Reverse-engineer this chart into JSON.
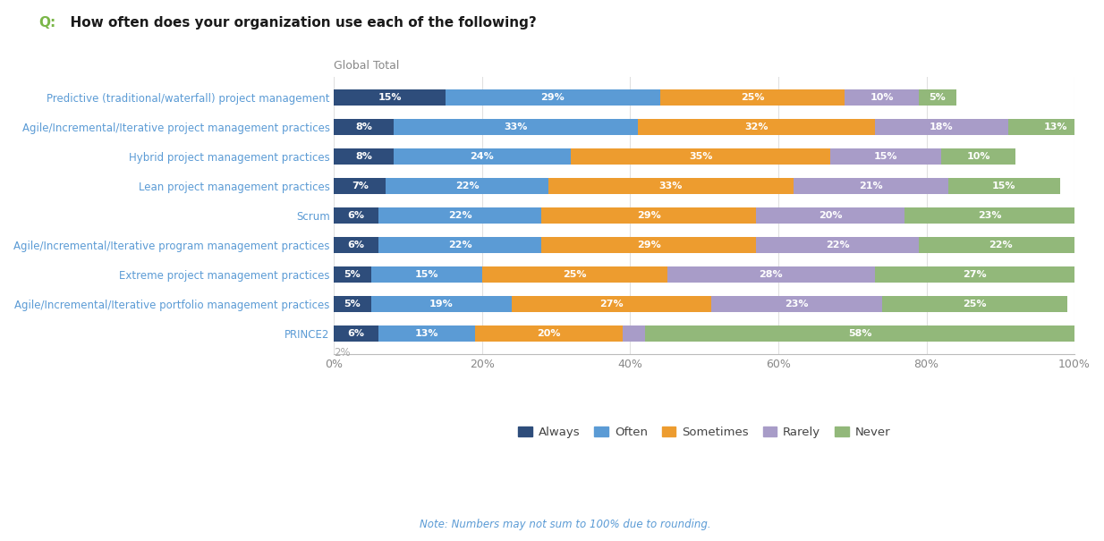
{
  "title_q": "Q:",
  "title_text": "  How often does your organization use each of the following?",
  "subtitle": "Global Total",
  "note": "Note: Numbers may not sum to 100% due to rounding.",
  "categories": [
    "Predictive (traditional/waterfall) project management",
    "Agile/Incremental/Iterative project management practices",
    "Hybrid project management practices",
    "Lean project management practices",
    "Scrum",
    "Agile/Incremental/Iterative program management practices",
    "Extreme project management practices",
    "Agile/Incremental/Iterative portfolio management practices",
    "PRINCE2"
  ],
  "series": {
    "Always": [
      15,
      8,
      8,
      7,
      6,
      6,
      5,
      5,
      6
    ],
    "Often": [
      29,
      33,
      24,
      22,
      22,
      22,
      15,
      19,
      13
    ],
    "Sometimes": [
      25,
      32,
      35,
      33,
      29,
      29,
      25,
      27,
      20
    ],
    "Rarely": [
      10,
      18,
      15,
      21,
      20,
      22,
      28,
      23,
      3
    ],
    "Never": [
      5,
      13,
      10,
      15,
      23,
      22,
      27,
      25,
      58
    ]
  },
  "prince2_2pct_label": "2%",
  "colors": {
    "Always": "#2e4d7b",
    "Often": "#5b9bd5",
    "Sometimes": "#ed9c2f",
    "Rarely": "#a89cc8",
    "Never": "#92b87a"
  },
  "bar_height": 0.55,
  "background_color": "#ffffff",
  "title_q_color": "#7ab648",
  "title_text_color": "#1a1a1a",
  "label_color": "#5b9bd5",
  "note_color": "#5b9bd5",
  "text_color_on_bar": "#ffffff",
  "xlim": [
    0,
    100
  ],
  "figsize": [
    12.34,
    6.05
  ],
  "dpi": 100
}
